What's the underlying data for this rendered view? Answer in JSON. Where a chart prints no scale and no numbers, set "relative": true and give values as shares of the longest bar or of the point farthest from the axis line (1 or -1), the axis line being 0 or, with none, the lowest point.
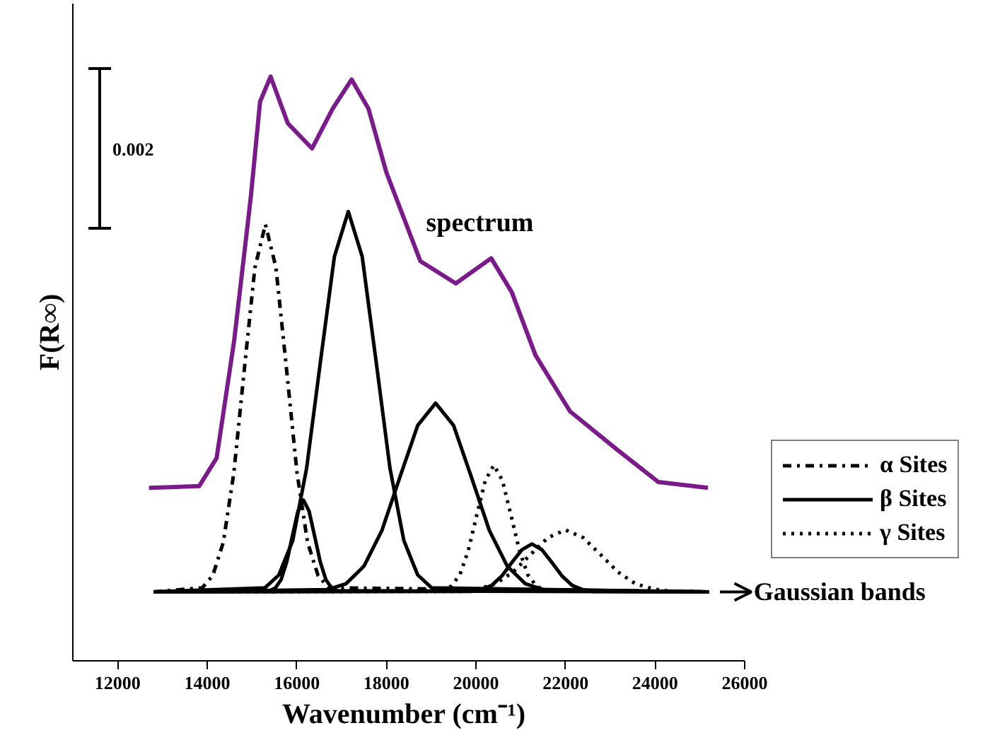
{
  "chart_data": {
    "type": "line",
    "relative": true,
    "xlabel": "Wavenumber (cm⁻¹)",
    "ylabel": "F(R∞)",
    "xlim": [
      11000,
      26000
    ],
    "xticks": [
      12000,
      14000,
      16000,
      18000,
      20000,
      22000,
      24000,
      26000
    ],
    "grid": false,
    "legend": "right",
    "annotations": [
      "0.002",
      "Gaussian bands"
    ],
    "series": [
      {
        "name": "spectrum",
        "color": "#7b1a8a",
        "line_style": "solid",
        "x": [
          12700,
          13820,
          14210,
          14600,
          14975,
          15180,
          15415,
          15800,
          16340,
          16800,
          17225,
          17600,
          18000,
          18760,
          19550,
          20340,
          20800,
          21330,
          22100,
          23160,
          24075,
          25180
        ],
        "values": [
          0.296,
          0.299,
          0.347,
          0.547,
          0.795,
          0.957,
          1.0,
          0.92,
          0.877,
          0.945,
          0.995,
          0.945,
          0.836,
          0.684,
          0.646,
          0.689,
          0.631,
          0.523,
          0.427,
          0.361,
          0.306,
          0.296
        ]
      },
      {
        "name": "α Sites",
        "color": "#000000",
        "line_style": "dashdot",
        "x": [
          12800,
          13890,
          14125,
          14360,
          14595,
          14830,
          15065,
          15300,
          15535,
          15770,
          16005,
          16240,
          16475,
          16710,
          25200
        ],
        "values": [
          0.118,
          0.125,
          0.146,
          0.203,
          0.322,
          0.5,
          0.673,
          0.747,
          0.673,
          0.5,
          0.322,
          0.203,
          0.146,
          0.125,
          0.118
        ]
      },
      {
        "name": "β Sites",
        "color": "#000000",
        "line_style": "solid",
        "x": [
          12800,
          15400,
          15525,
          15650,
          15775,
          15900,
          16025,
          16150,
          16275,
          16400,
          16525,
          16650,
          16775,
          16900,
          25200
        ],
        "values": [
          0.118,
          0.12,
          0.125,
          0.139,
          0.169,
          0.213,
          0.256,
          0.275,
          0.256,
          0.213,
          0.169,
          0.139,
          0.125,
          0.12,
          0.118
        ]
      },
      {
        "color": "#000000",
        "line_style": "solid",
        "x": [
          12800,
          15290,
          15600,
          15910,
          16220,
          16530,
          16840,
          17150,
          17460,
          17770,
          18080,
          18390,
          18700,
          19010,
          25200
        ],
        "values": [
          0.118,
          0.125,
          0.147,
          0.206,
          0.33,
          0.513,
          0.692,
          0.769,
          0.692,
          0.513,
          0.33,
          0.206,
          0.147,
          0.125,
          0.118
        ]
      },
      {
        "color": "#000000",
        "line_style": "solid",
        "x": [
          12800,
          16700,
          17100,
          17500,
          17900,
          18300,
          18700,
          19100,
          19500,
          19900,
          20300,
          20700,
          21100,
          21500,
          25200
        ],
        "values": [
          0.118,
          0.122,
          0.132,
          0.162,
          0.223,
          0.314,
          0.403,
          0.441,
          0.403,
          0.314,
          0.223,
          0.162,
          0.132,
          0.122,
          0.118
        ]
      },
      {
        "color": "#000000",
        "line_style": "solid",
        "x": [
          12800,
          19900,
          20125,
          20350,
          20575,
          20800,
          21025,
          21250,
          21475,
          21700,
          21925,
          22150,
          22375,
          22600,
          25200
        ],
        "values": [
          0.118,
          0.119,
          0.122,
          0.129,
          0.145,
          0.168,
          0.19,
          0.2,
          0.19,
          0.168,
          0.145,
          0.129,
          0.122,
          0.119,
          0.118
        ]
      },
      {
        "name": "γ Sites",
        "color": "#000000",
        "line_style": "dotted",
        "x": [
          12800,
          19260,
          19450,
          19640,
          19830,
          20020,
          20210,
          20400,
          20590,
          20780,
          20970,
          21160,
          21350,
          21540,
          25200
        ],
        "values": [
          0.118,
          0.12,
          0.128,
          0.147,
          0.189,
          0.25,
          0.309,
          0.335,
          0.309,
          0.25,
          0.189,
          0.147,
          0.128,
          0.12,
          0.118
        ]
      },
      {
        "color": "#000000",
        "line_style": "dotted",
        "x": [
          12800,
          19660,
          20050,
          20440,
          20830,
          21220,
          21610,
          22000,
          22390,
          22780,
          23170,
          23560,
          23950,
          24340,
          25200
        ],
        "values": [
          0.118,
          0.119,
          0.123,
          0.132,
          0.152,
          0.182,
          0.211,
          0.224,
          0.211,
          0.182,
          0.152,
          0.132,
          0.123,
          0.119,
          0.118
        ]
      }
    ]
  }
}
